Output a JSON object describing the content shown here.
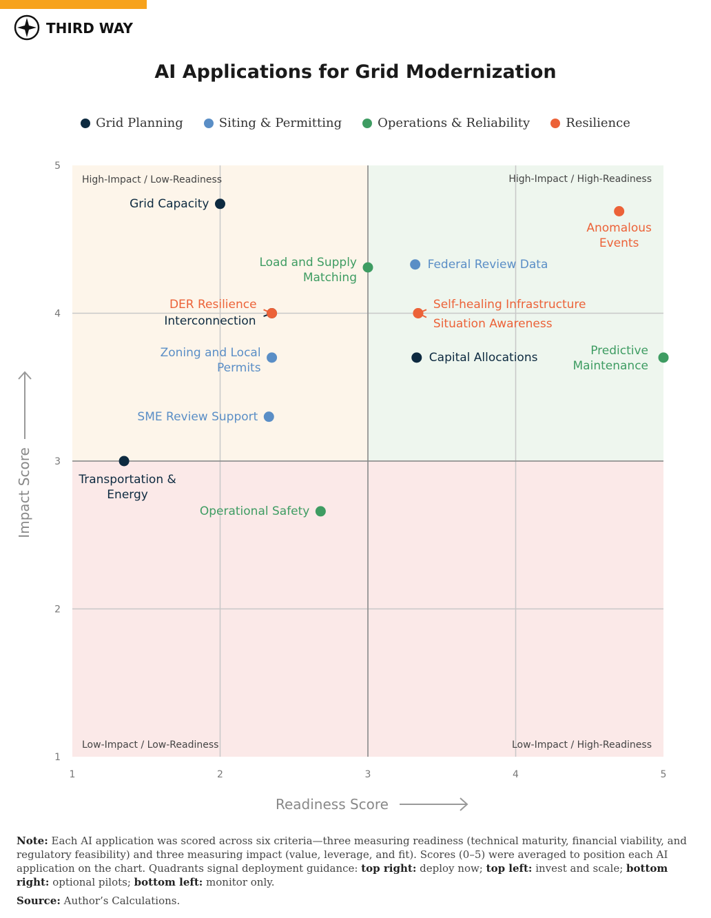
{
  "header": {
    "brand": "THIRD WAY"
  },
  "chart_data": {
    "type": "scatter",
    "title": "AI Applications for Grid Modernization",
    "xlabel": "Readiness Score",
    "ylabel": "Impact Score",
    "xlim": [
      1,
      5
    ],
    "ylim": [
      1,
      5
    ],
    "xticks": [
      1,
      2,
      3,
      4,
      5
    ],
    "yticks": [
      1,
      2,
      3,
      4,
      5
    ],
    "grid": true,
    "quadrant_divider": {
      "x": 3,
      "y": 3
    },
    "quadrants": {
      "top_left": "High-Impact / Low-Readiness",
      "top_right": "High-Impact / High-Readiness",
      "bottom_left": "Low-Impact / Low-Readiness",
      "bottom_right": "Low-Impact / High-Readiness"
    },
    "quadrant_colors": {
      "top_left": "#fdf5ea",
      "top_right": "#eef6ee",
      "bottom_left": "#fbe9e8",
      "bottom_right": "#fbe9e8"
    },
    "series": [
      {
        "name": "Grid Planning",
        "color": "#0d2a40",
        "labels": [
          "Grid Capacity",
          "Interconnection",
          "Transportation & Energy",
          "Capital Allocations"
        ],
        "x": [
          2.0,
          2.35,
          1.35,
          3.33
        ],
        "y": [
          4.74,
          4.0,
          3.0,
          3.7
        ]
      },
      {
        "name": "Siting & Permitting",
        "color": "#5a8ec6",
        "labels": [
          "Federal Review Data",
          "Zoning and Local Permits",
          "SME Review Support"
        ],
        "x": [
          3.32,
          2.35,
          2.33
        ],
        "y": [
          4.33,
          3.7,
          3.3
        ]
      },
      {
        "name": "Operations & Reliability",
        "color": "#3e9c62",
        "labels": [
          "Load and Supply Matching",
          "Predictive Maintenance",
          "Operational Safety"
        ],
        "x": [
          3.0,
          5.0,
          2.68
        ],
        "y": [
          4.31,
          3.7,
          2.66
        ]
      },
      {
        "name": "Resilience",
        "color": "#ec6238",
        "labels": [
          "Anomalous Events",
          "DER Resilience",
          "Self-healing Infrastructure",
          "Situation Awareness"
        ],
        "x": [
          4.7,
          2.35,
          3.34,
          3.34
        ],
        "y": [
          4.69,
          4.0,
          4.0,
          4.0
        ]
      }
    ]
  },
  "note": [
    {
      "text": "Note:",
      "bold": true
    },
    {
      "text": " Each AI application was scored across six criteria—three measuring readiness (technical maturity, financial viability, and regulatory feasibility) and three measuring impact (value, leverage, and fit). Scores (0–5) were averaged to position each AI application on the chart. Quadrants signal deployment guidance: ",
      "bold": false
    },
    {
      "text": "top right:",
      "bold": true
    },
    {
      "text": " deploy now; ",
      "bold": false
    },
    {
      "text": "top left:",
      "bold": true
    },
    {
      "text": " invest and scale; ",
      "bold": false
    },
    {
      "text": "bottom right:",
      "bold": true
    },
    {
      "text": " optional pilots; ",
      "bold": false
    },
    {
      "text": "bottom left:",
      "bold": true
    },
    {
      "text": " monitor only.",
      "bold": false
    }
  ],
  "source": [
    {
      "text": "Source:",
      "bold": true
    },
    {
      "text": " Author’s Calculations.",
      "bold": false
    }
  ]
}
